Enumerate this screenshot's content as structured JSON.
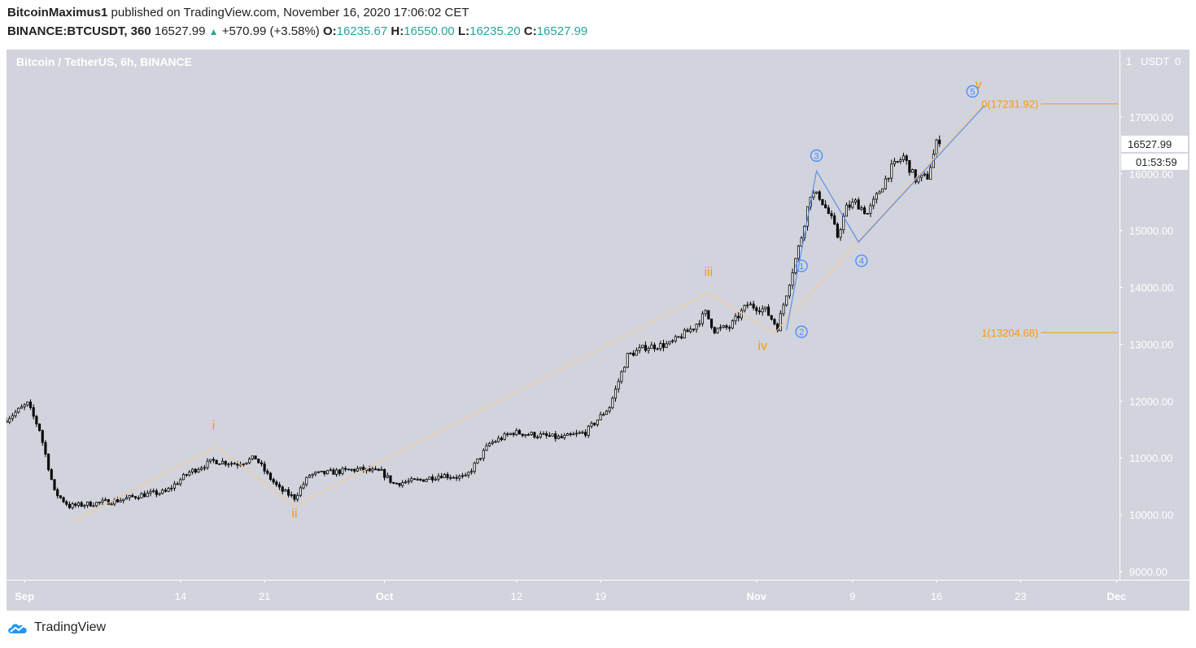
{
  "header": {
    "author": "BitcoinMaximus1",
    "published_text": "published on TradingView.com, November 16, 2020 17:06:02 CET",
    "symbol": "BINANCE:BTCUSDT, 360",
    "last": "16527.99",
    "change": "+570.99 (+3.58%)",
    "o_label": "O:",
    "o": "16235.67",
    "h_label": "H:",
    "h": "16550.00",
    "l_label": "L:",
    "l": "16235.20",
    "c_label": "C:",
    "c": "16527.99"
  },
  "footer": {
    "brand": "TradingView"
  },
  "chart_data": {
    "type": "candlestick",
    "title": "Bitcoin / TetherUS, 6h, BINANCE",
    "currency_label": "USDT",
    "ylim": [
      9000,
      17900
    ],
    "y_ticks": [
      9000,
      10000,
      11000,
      12000,
      13000,
      14000,
      15000,
      16000,
      17000
    ],
    "y_tick_labels": [
      "9000.00",
      "10000.00",
      "11000.00",
      "12000.00",
      "13000.00",
      "14000.00",
      "15000.00",
      "16000.00",
      "17000.00"
    ],
    "x_ticks": [
      {
        "label": "Sep",
        "date": "2020-09-01"
      },
      {
        "label": "14",
        "date": "2020-09-14"
      },
      {
        "label": "21",
        "date": "2020-09-21"
      },
      {
        "label": "Oct",
        "date": "2020-10-01"
      },
      {
        "label": "12",
        "date": "2020-10-12"
      },
      {
        "label": "19",
        "date": "2020-10-19"
      },
      {
        "label": "Nov",
        "date": "2020-11-01"
      },
      {
        "label": "9",
        "date": "2020-11-09"
      },
      {
        "label": "16",
        "date": "2020-11-16"
      },
      {
        "label": "23",
        "date": "2020-11-23"
      },
      {
        "label": "Dec",
        "date": "2020-12-01"
      }
    ],
    "xlim": [
      "2020-08-30T12:00",
      "2020-12-01T06:00"
    ],
    "price_path": [
      [
        "2020-08-30T12:00",
        11650
      ],
      [
        "2020-09-01T12:00",
        11950
      ],
      [
        "2020-09-02T12:00",
        11500
      ],
      [
        "2020-09-03T18:00",
        10400
      ],
      [
        "2020-09-05T00:00",
        10150
      ],
      [
        "2020-09-07T00:00",
        10200
      ],
      [
        "2020-09-09T00:00",
        10250
      ],
      [
        "2020-09-11T00:00",
        10350
      ],
      [
        "2020-09-13T00:00",
        10400
      ],
      [
        "2020-09-15T00:00",
        10750
      ],
      [
        "2020-09-17T00:00",
        10950
      ],
      [
        "2020-09-19T00:00",
        10900
      ],
      [
        "2020-09-20T12:00",
        11000
      ],
      [
        "2020-09-21T12:00",
        10700
      ],
      [
        "2020-09-22T12:00",
        10450
      ],
      [
        "2020-09-23T18:00",
        10300
      ],
      [
        "2020-09-25T00:00",
        10700
      ],
      [
        "2020-09-27T00:00",
        10750
      ],
      [
        "2020-09-29T00:00",
        10800
      ],
      [
        "2020-10-01T00:00",
        10750
      ],
      [
        "2020-10-02T00:00",
        10550
      ],
      [
        "2020-10-04T00:00",
        10600
      ],
      [
        "2020-10-06T00:00",
        10700
      ],
      [
        "2020-10-08T00:00",
        10650
      ],
      [
        "2020-10-10T00:00",
        11250
      ],
      [
        "2020-10-12T00:00",
        11450
      ],
      [
        "2020-10-14T00:00",
        11400
      ],
      [
        "2020-10-16T00:00",
        11350
      ],
      [
        "2020-10-18T00:00",
        11450
      ],
      [
        "2020-10-20T00:00",
        11900
      ],
      [
        "2020-10-21T12:00",
        12800
      ],
      [
        "2020-10-23T00:00",
        12950
      ],
      [
        "2020-10-25T00:00",
        13000
      ],
      [
        "2020-10-27T00:00",
        13300
      ],
      [
        "2020-10-28T00:00",
        13550
      ],
      [
        "2020-10-28T18:00",
        13250
      ],
      [
        "2020-10-30T00:00",
        13300
      ],
      [
        "2020-10-31T12:00",
        13700
      ],
      [
        "2020-11-02T00:00",
        13600
      ],
      [
        "2020-11-03T00:00",
        13300
      ],
      [
        "2020-11-04T00:00",
        14100
      ],
      [
        "2020-11-05T00:00",
        14900
      ],
      [
        "2020-11-05T18:00",
        15650
      ],
      [
        "2020-11-06T12:00",
        15600
      ],
      [
        "2020-11-07T12:00",
        15200
      ],
      [
        "2020-11-08T00:00",
        14900
      ],
      [
        "2020-11-08T18:00",
        15400
      ],
      [
        "2020-11-09T12:00",
        15500
      ],
      [
        "2020-11-10T12:00",
        15300
      ],
      [
        "2020-11-11T12:00",
        15700
      ],
      [
        "2020-11-12T12:00",
        16100
      ],
      [
        "2020-11-13T12:00",
        16300
      ],
      [
        "2020-11-14T12:00",
        15900
      ],
      [
        "2020-11-15T12:00",
        15950
      ],
      [
        "2020-11-16T06:00",
        16530
      ]
    ],
    "last_price": {
      "value": 16527.99,
      "label": "16527.99",
      "countdown": "01:53:59"
    },
    "fib_levels": [
      {
        "label": "0(17231.92)",
        "value": 17231.92,
        "x_from": "2020-11-23T00:00"
      },
      {
        "label": "1(13204.68)",
        "value": 13204.68,
        "x_from": "2020-11-23T00:00"
      }
    ],
    "wave_labels": [
      {
        "text": "i",
        "date": "2020-09-16T18:00",
        "price": 11500,
        "color": "#ff9800"
      },
      {
        "text": "ii",
        "date": "2020-09-23T12:00",
        "price": 9950,
        "color": "#ff9800"
      },
      {
        "text": "iii",
        "date": "2020-10-28T00:00",
        "price": 14200,
        "color": "#ff9800"
      },
      {
        "text": "iv",
        "date": "2020-11-01T12:00",
        "price": 12900,
        "color": "#ff9800"
      },
      {
        "text": "v",
        "date": "2020-11-19T12:00",
        "price": 17500,
        "color": "#ff9800"
      },
      {
        "text": "1",
        "date": "2020-11-04T18:00",
        "price": 14380,
        "color": "#448aff",
        "circled": true
      },
      {
        "text": "2",
        "date": "2020-11-04T18:00",
        "price": 13220,
        "color": "#448aff",
        "circled": true
      },
      {
        "text": "3",
        "date": "2020-11-06T00:00",
        "price": 16320,
        "color": "#448aff",
        "circled": true
      },
      {
        "text": "4",
        "date": "2020-11-09T18:00",
        "price": 14470,
        "color": "#448aff",
        "circled": true
      },
      {
        "text": "5",
        "date": "2020-11-19T00:00",
        "price": 17450,
        "color": "#448aff",
        "circled": true
      }
    ],
    "orange_wave_path": [
      [
        "2020-09-04T18:00",
        9850
      ],
      [
        "2020-09-17T00:00",
        11200
      ],
      [
        "2020-09-23T12:00",
        10150
      ],
      [
        "2020-10-28T00:00",
        13900
      ],
      [
        "2020-11-02T12:00",
        13200
      ],
      [
        "2020-11-20T00:00",
        17250
      ]
    ],
    "blue_wave_path": [
      [
        "2020-11-03T12:00",
        13250
      ],
      [
        "2020-11-06T00:00",
        16050
      ],
      [
        "2020-11-09T12:00",
        14800
      ],
      [
        "2020-11-20T00:00",
        17200
      ]
    ]
  }
}
